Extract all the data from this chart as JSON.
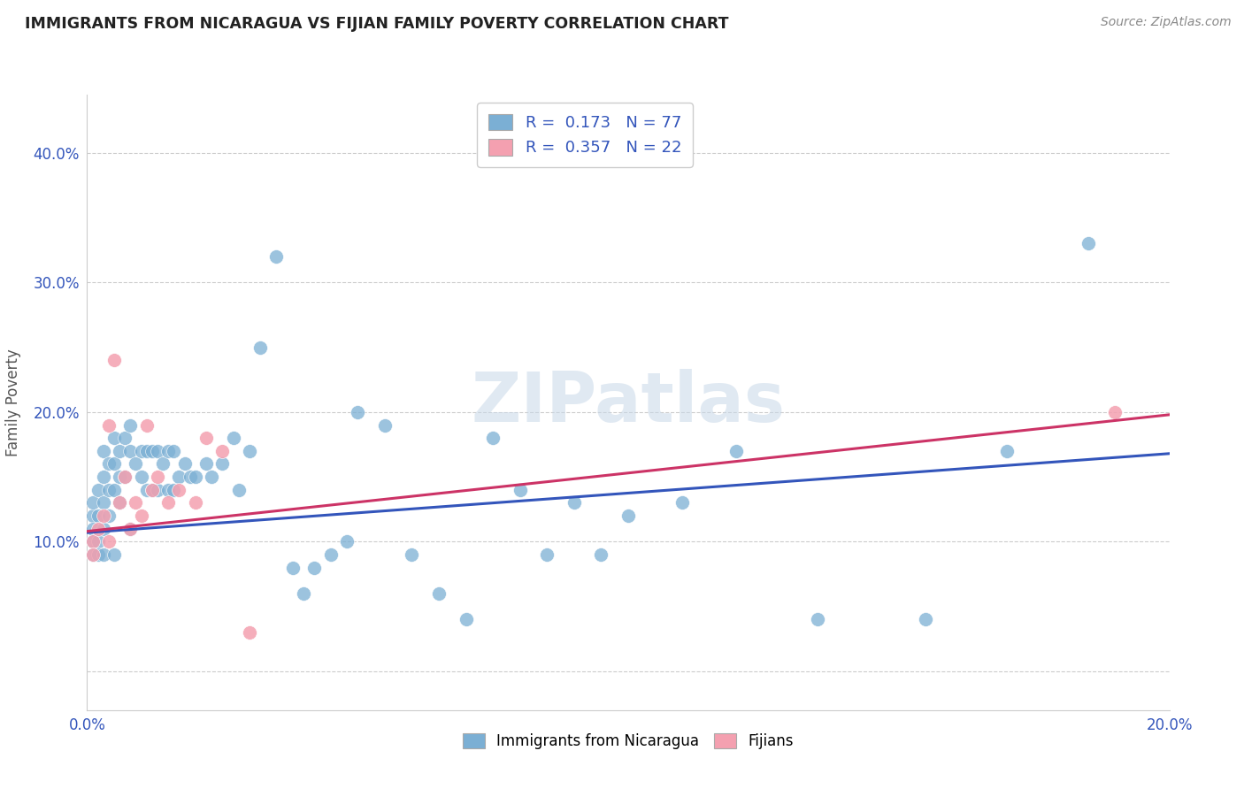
{
  "title": "IMMIGRANTS FROM NICARAGUA VS FIJIAN FAMILY POVERTY CORRELATION CHART",
  "source": "Source: ZipAtlas.com",
  "ylabel": "Family Poverty",
  "xlim": [
    0.0,
    0.2
  ],
  "ylim": [
    -0.03,
    0.445
  ],
  "yticks": [
    0.0,
    0.1,
    0.2,
    0.3,
    0.4
  ],
  "ytick_labels": [
    "",
    "10.0%",
    "20.0%",
    "30.0%",
    "40.0%"
  ],
  "xticks": [
    0.0,
    0.05,
    0.1,
    0.15,
    0.2
  ],
  "xtick_labels": [
    "0.0%",
    "",
    "",
    "",
    "20.0%"
  ],
  "nicaragua_color": "#7bafd4",
  "fijian_color": "#f4a0b0",
  "nicaragua_line_color": "#3355bb",
  "fijian_line_color": "#cc3366",
  "nicaragua_R": 0.173,
  "nicaragua_N": 77,
  "fijian_R": 0.357,
  "fijian_N": 22,
  "watermark": "ZIPatlas",
  "nicaragua_x": [
    0.001,
    0.001,
    0.001,
    0.001,
    0.001,
    0.002,
    0.002,
    0.002,
    0.002,
    0.003,
    0.003,
    0.003,
    0.003,
    0.003,
    0.004,
    0.004,
    0.004,
    0.005,
    0.005,
    0.005,
    0.005,
    0.006,
    0.006,
    0.006,
    0.007,
    0.007,
    0.008,
    0.008,
    0.008,
    0.009,
    0.01,
    0.01,
    0.011,
    0.011,
    0.012,
    0.012,
    0.013,
    0.013,
    0.014,
    0.015,
    0.015,
    0.016,
    0.016,
    0.017,
    0.018,
    0.019,
    0.02,
    0.022,
    0.023,
    0.025,
    0.027,
    0.028,
    0.03,
    0.032,
    0.035,
    0.038,
    0.04,
    0.042,
    0.045,
    0.048,
    0.05,
    0.055,
    0.06,
    0.065,
    0.07,
    0.075,
    0.08,
    0.085,
    0.09,
    0.095,
    0.1,
    0.11,
    0.12,
    0.135,
    0.155,
    0.17,
    0.185
  ],
  "nicaragua_y": [
    0.12,
    0.13,
    0.11,
    0.1,
    0.09,
    0.14,
    0.12,
    0.1,
    0.09,
    0.17,
    0.15,
    0.13,
    0.11,
    0.09,
    0.16,
    0.14,
    0.12,
    0.18,
    0.16,
    0.14,
    0.09,
    0.17,
    0.15,
    0.13,
    0.18,
    0.15,
    0.19,
    0.17,
    0.11,
    0.16,
    0.17,
    0.15,
    0.17,
    0.14,
    0.17,
    0.14,
    0.17,
    0.14,
    0.16,
    0.17,
    0.14,
    0.17,
    0.14,
    0.15,
    0.16,
    0.15,
    0.15,
    0.16,
    0.15,
    0.16,
    0.18,
    0.14,
    0.17,
    0.25,
    0.32,
    0.08,
    0.06,
    0.08,
    0.09,
    0.1,
    0.2,
    0.19,
    0.09,
    0.06,
    0.04,
    0.18,
    0.14,
    0.09,
    0.13,
    0.09,
    0.12,
    0.13,
    0.17,
    0.04,
    0.04,
    0.17,
    0.33
  ],
  "fijian_x": [
    0.001,
    0.001,
    0.002,
    0.003,
    0.004,
    0.004,
    0.005,
    0.006,
    0.007,
    0.008,
    0.009,
    0.01,
    0.011,
    0.012,
    0.013,
    0.015,
    0.017,
    0.02,
    0.022,
    0.025,
    0.03,
    0.19
  ],
  "fijian_y": [
    0.1,
    0.09,
    0.11,
    0.12,
    0.1,
    0.19,
    0.24,
    0.13,
    0.15,
    0.11,
    0.13,
    0.12,
    0.19,
    0.14,
    0.15,
    0.13,
    0.14,
    0.13,
    0.18,
    0.17,
    0.03,
    0.2
  ],
  "nic_line_x": [
    0.0,
    0.2
  ],
  "nic_line_y": [
    0.107,
    0.168
  ],
  "fij_line_x": [
    0.0,
    0.2
  ],
  "fij_line_y": [
    0.108,
    0.198
  ]
}
